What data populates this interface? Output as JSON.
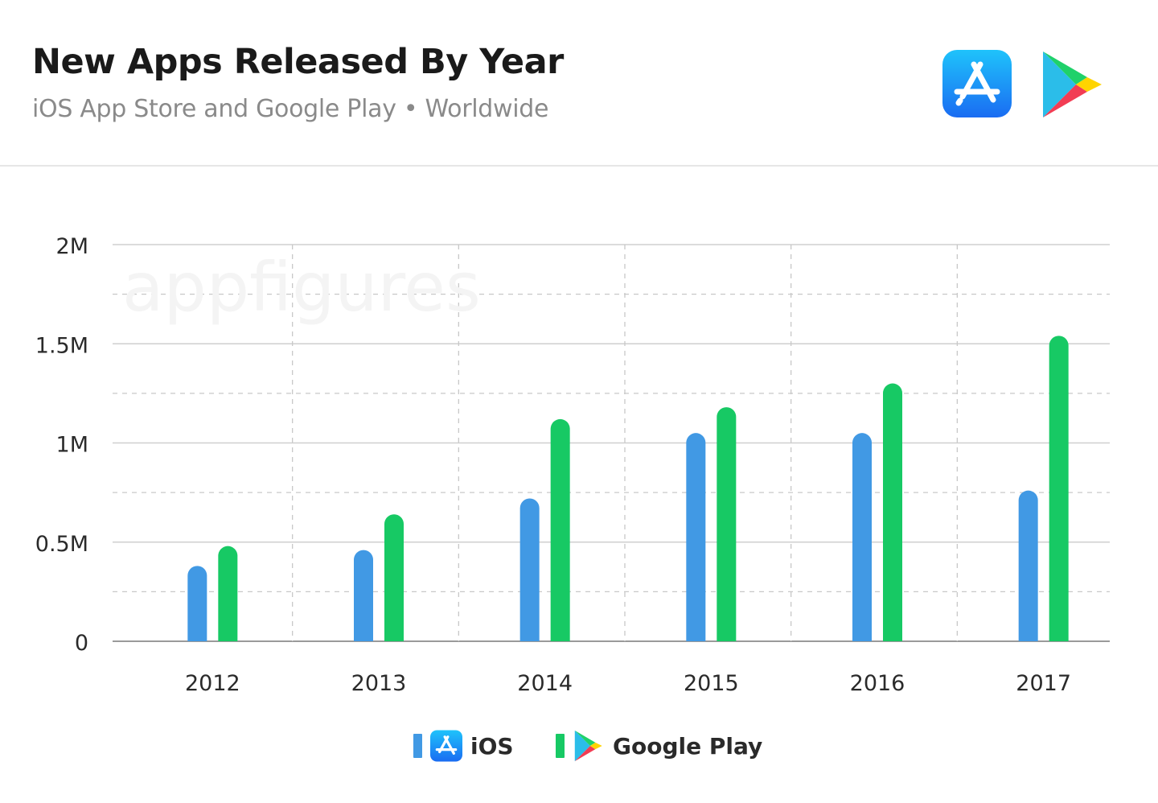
{
  "header": {
    "title": "New Apps Released By Year",
    "subtitle": "iOS App Store and Google Play • Worldwide"
  },
  "watermark": "appfigures",
  "icons": [
    "app-store-icon",
    "google-play-icon"
  ],
  "colors": {
    "ios": "#4199e4",
    "google_play": "#17c964",
    "appstore_gradient_top": "#1fc3fb",
    "appstore_gradient_bottom": "#1a6cf2"
  },
  "chart_data": {
    "type": "bar",
    "title": "New Apps Released By Year",
    "subtitle": "iOS App Store and Google Play • Worldwide",
    "categories": [
      "2012",
      "2013",
      "2014",
      "2015",
      "2016",
      "2017"
    ],
    "series": [
      {
        "name": "iOS",
        "color": "#4199e4",
        "values": [
          380000,
          460000,
          720000,
          1050000,
          1050000,
          760000
        ]
      },
      {
        "name": "Google Play",
        "color": "#17c964",
        "values": [
          480000,
          640000,
          1120000,
          1180000,
          1300000,
          1540000
        ]
      }
    ],
    "ylim": [
      0,
      2000000
    ],
    "yticks": [
      0,
      500000,
      1000000,
      1500000,
      2000000
    ],
    "ytick_labels": [
      "0",
      "0.5M",
      "1M",
      "1.5M",
      "2M"
    ],
    "xlabel": "",
    "ylabel": "",
    "grid": true,
    "legend_position": "bottom-center"
  },
  "legend": {
    "items": [
      {
        "label": "iOS"
      },
      {
        "label": "Google Play"
      }
    ]
  }
}
